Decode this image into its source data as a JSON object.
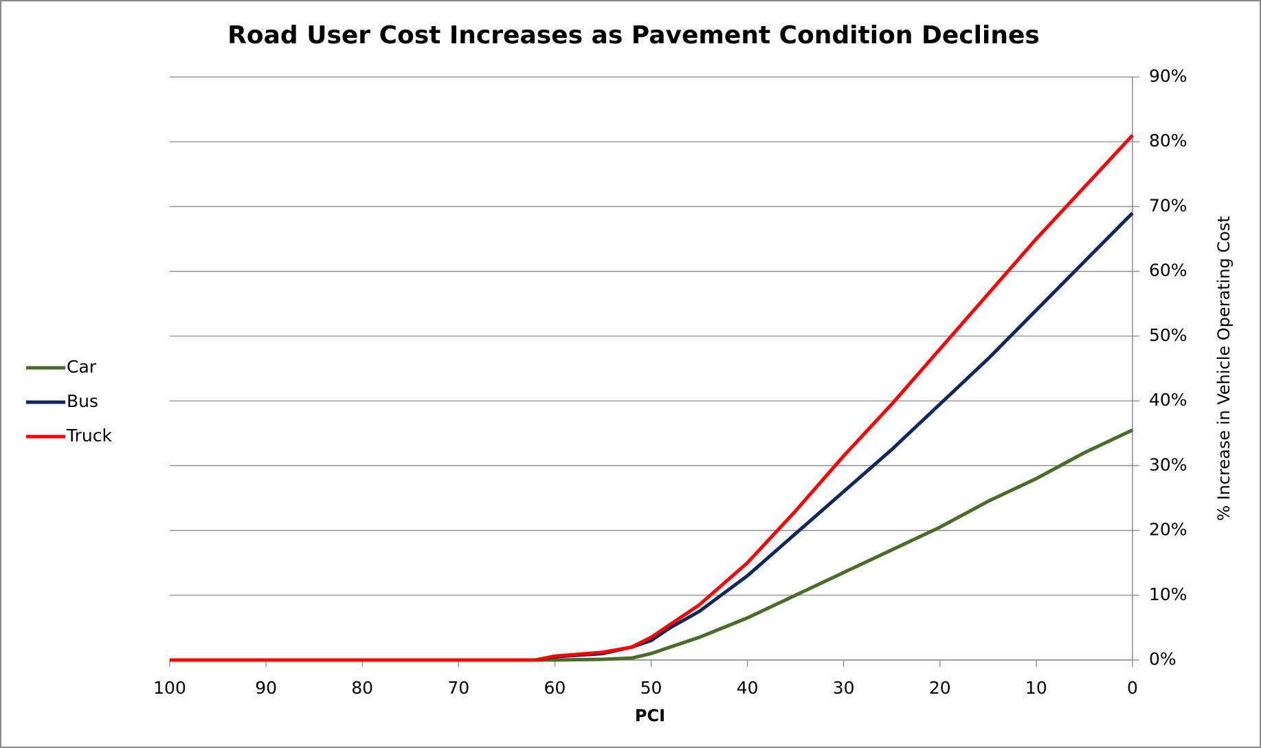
{
  "chart_data": {
    "type": "line",
    "title": "Road User Cost Increases as Pavement Condition Declines",
    "xlabel": "PCI",
    "ylabel": "% Increase in Vehicle Operating Cost",
    "x": [
      100,
      90,
      80,
      70,
      62,
      60,
      55,
      52,
      50,
      48,
      45,
      40,
      35,
      30,
      25,
      20,
      15,
      10,
      5,
      0
    ],
    "series": [
      {
        "name": "Car",
        "color": "#4a6b2a",
        "values": [
          0,
          0,
          0,
          0,
          0,
          0,
          0.1,
          0.3,
          1,
          2,
          3.5,
          6.5,
          10,
          13.5,
          17,
          20.5,
          24.5,
          28,
          32,
          35.5
        ]
      },
      {
        "name": "Bus",
        "color": "#10265e",
        "values": [
          0,
          0,
          0,
          0,
          0,
          0.5,
          1,
          2,
          3,
          5,
          7.5,
          13,
          19.5,
          26,
          32.5,
          39.5,
          46.5,
          54,
          61.5,
          69
        ]
      },
      {
        "name": "Truck",
        "color": "#ff0000",
        "values": [
          0,
          0,
          0,
          0,
          0,
          0.6,
          1.2,
          2,
          3.5,
          5.5,
          8.5,
          15,
          23,
          31.5,
          39.5,
          48,
          56.5,
          65,
          73,
          81
        ]
      }
    ],
    "xlim": [
      100,
      0
    ],
    "xticks": [
      100,
      90,
      80,
      70,
      60,
      50,
      40,
      30,
      20,
      10,
      0
    ],
    "ylim": [
      0,
      90
    ],
    "yticks": [
      {
        "value": 0,
        "label": "0%"
      },
      {
        "value": 10,
        "label": "10%"
      },
      {
        "value": 20,
        "label": "20%"
      },
      {
        "value": 30,
        "label": "30%"
      },
      {
        "value": 40,
        "label": "40%"
      },
      {
        "value": 50,
        "label": "50%"
      },
      {
        "value": 60,
        "label": "60%"
      },
      {
        "value": 70,
        "label": "70%"
      },
      {
        "value": 80,
        "label": "80%"
      },
      {
        "value": 90,
        "label": "90%"
      }
    ],
    "grid": true,
    "legend": "left"
  }
}
